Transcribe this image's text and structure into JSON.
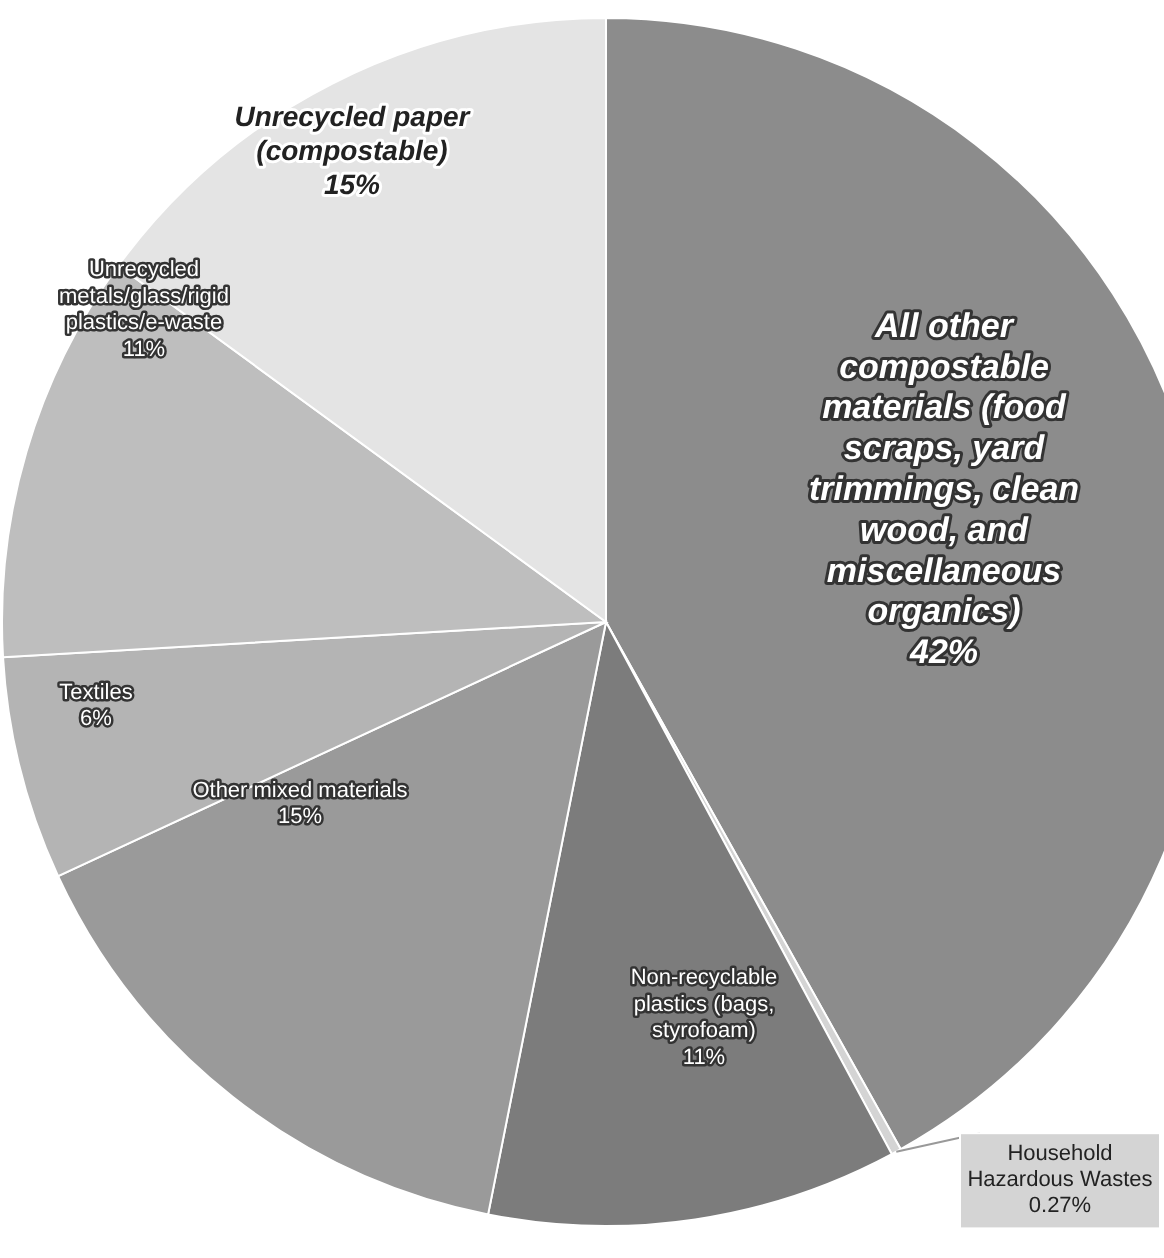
{
  "chart_data": {
    "type": "pie",
    "categories": [
      "All other compostable materials (food scraps, yard trimmings, clean wood, and miscellaneous organics)",
      "Household Hazardous Wastes",
      "Non-recyclable plastics (bags, styrofoam)",
      "Other mixed materials",
      "Textiles",
      "Unrecycled metals/glass/rigid plastics/e-waste",
      "Unrecycled paper (compostable)"
    ],
    "values": [
      42,
      0.27,
      11,
      15,
      6,
      11,
      15
    ],
    "value_labels": [
      "42%",
      "0.27%",
      "11%",
      "15%",
      "6%",
      "11%",
      "15%"
    ],
    "colors": [
      "#8c8c8c",
      "#d4d4d4",
      "#7c7c7c",
      "#9a9a9a",
      "#b4b4b4",
      "#bebebe",
      "#e4e4e4"
    ],
    "legend": false
  }
}
